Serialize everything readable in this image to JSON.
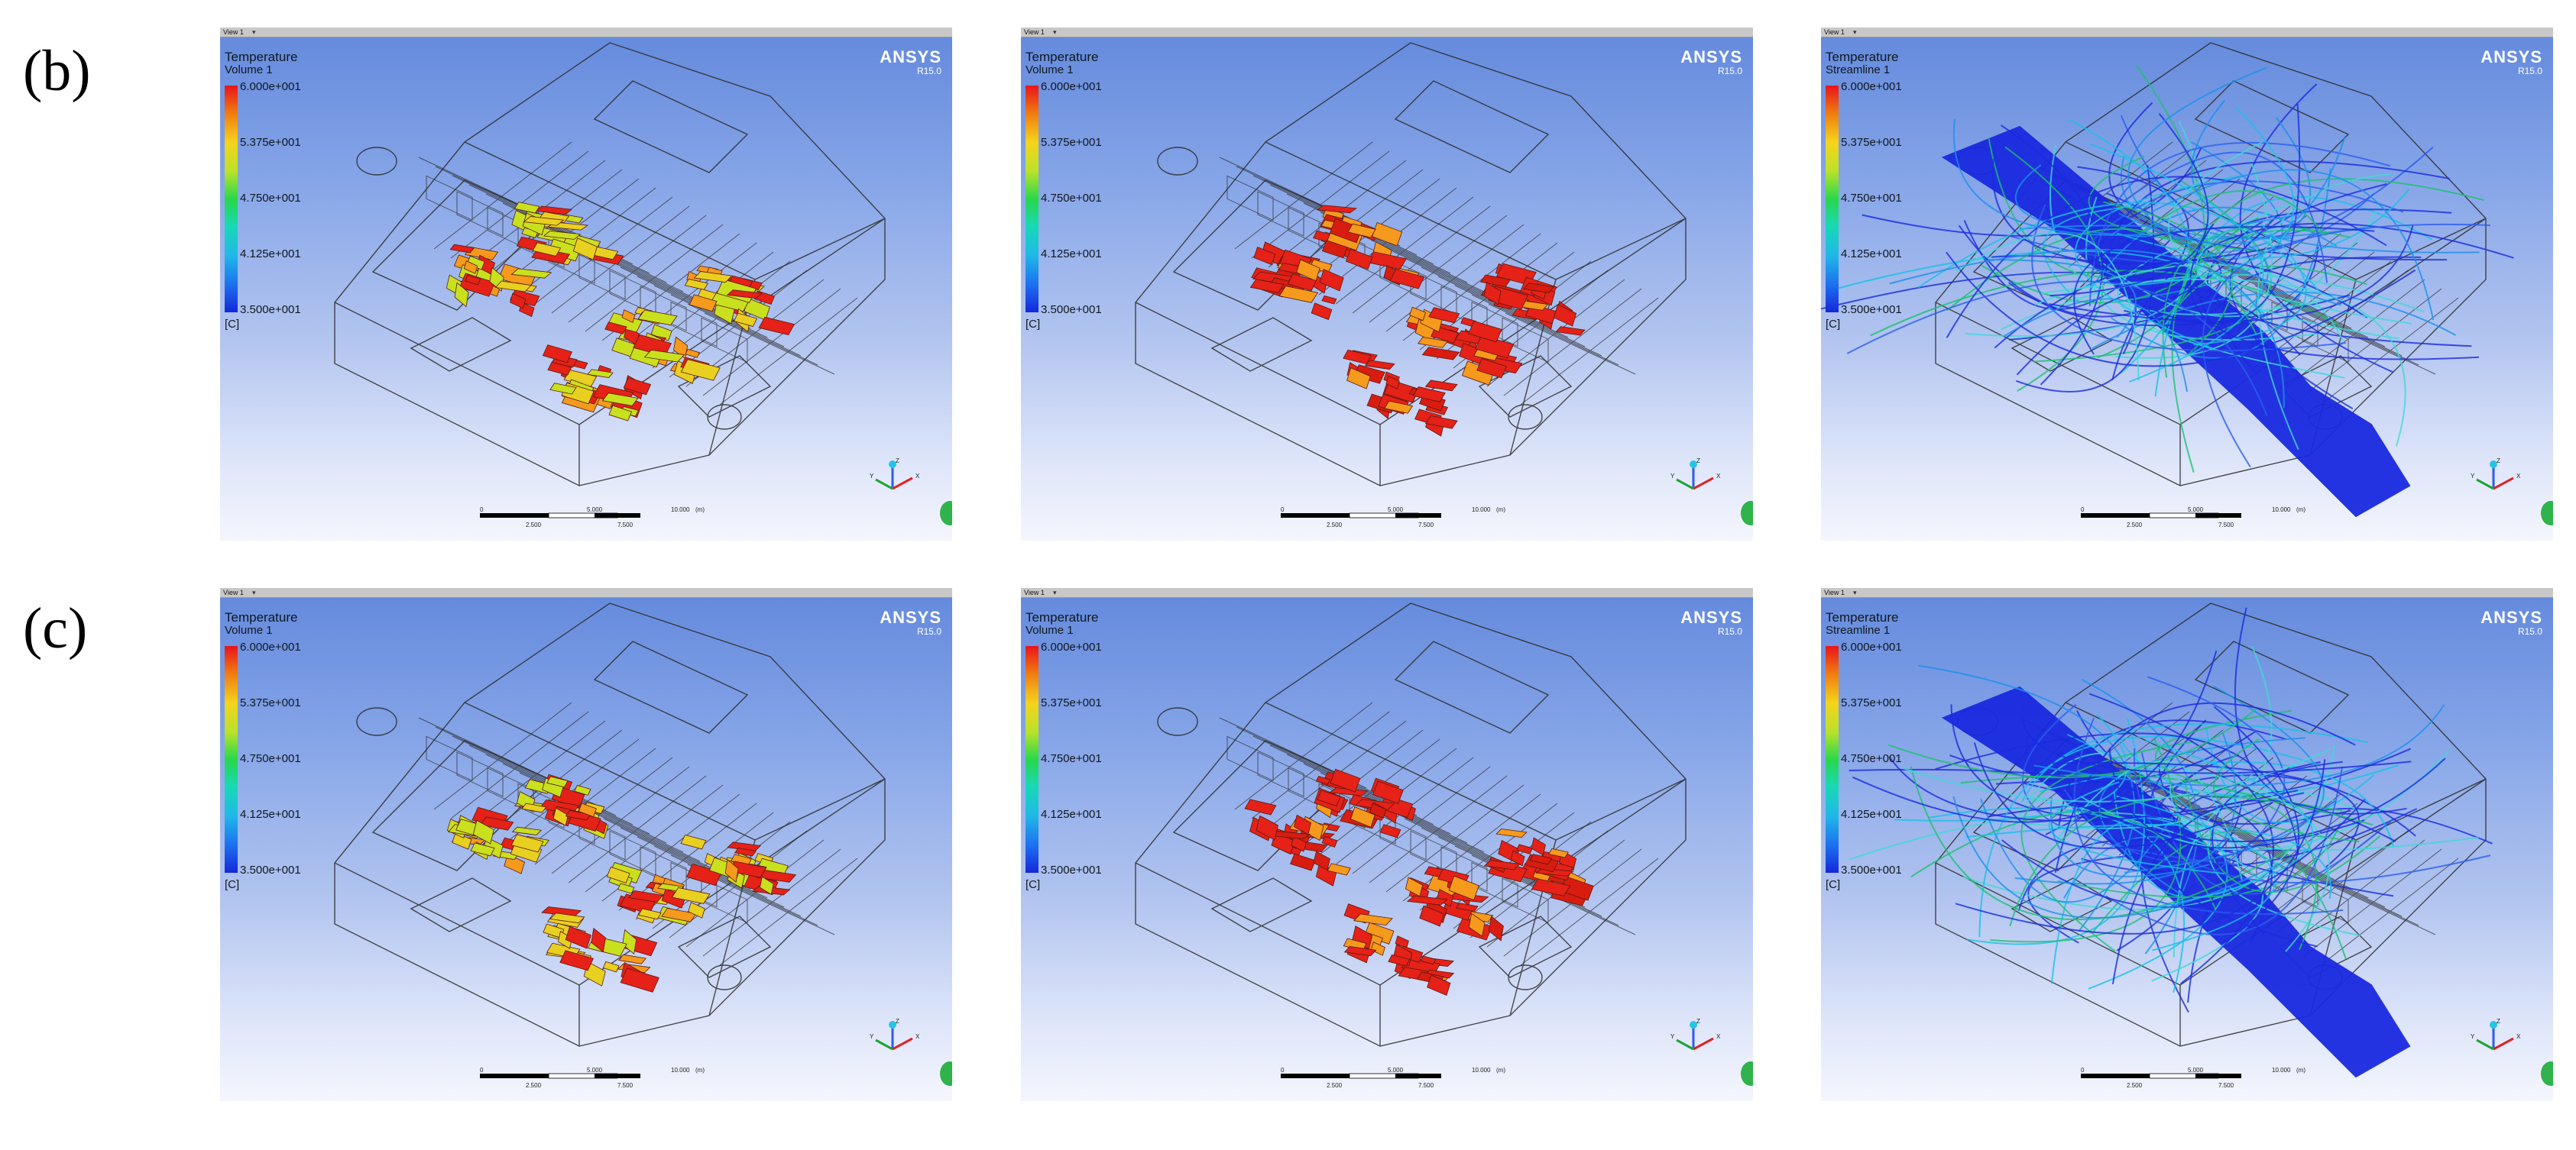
{
  "rows": [
    {
      "label": "(b)",
      "panels": [
        {
          "tab": "View 1",
          "title": "Temperature",
          "subtitle": "Volume 1",
          "style": "volume-mixed"
        },
        {
          "tab": "View 1",
          "title": "Temperature",
          "subtitle": "Volume 1",
          "style": "volume-hot"
        },
        {
          "tab": "View 1",
          "title": "Temperature",
          "subtitle": "Streamline 1",
          "style": "streamline"
        }
      ]
    },
    {
      "label": "(c)",
      "panels": [
        {
          "tab": "View 1",
          "title": "Temperature",
          "subtitle": "Volume 1",
          "style": "volume-mixed"
        },
        {
          "tab": "View 1",
          "title": "Temperature",
          "subtitle": "Volume 1",
          "style": "volume-hot"
        },
        {
          "tab": "View 1",
          "title": "Temperature",
          "subtitle": "Streamline 1",
          "style": "streamline"
        }
      ]
    }
  ],
  "legend": {
    "labels": [
      "6.000e+001",
      "5.375e+001",
      "4.750e+001",
      "4.125e+001",
      "3.500e+001"
    ],
    "unit": "[C]"
  },
  "brand": {
    "name": "ANSYS",
    "version": "R15.0"
  },
  "scale": {
    "ticks_top": [
      "0",
      "5.000",
      "10.000"
    ],
    "unit": "(m)",
    "ticks_bottom": [
      "2.500",
      "7.500"
    ]
  },
  "axes": {
    "x": "X",
    "y": "Y",
    "z": "Z"
  },
  "colors": {
    "hot": "#e52118",
    "warm": "#f59a1c",
    "mid": "#c8e01e",
    "cool": "#18c0e8",
    "cold": "#1a2ae0",
    "wire": "#2b2b2b"
  }
}
